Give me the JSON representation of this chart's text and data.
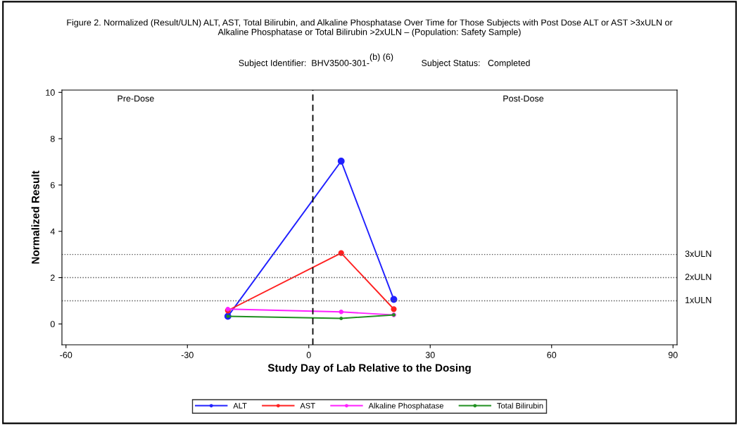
{
  "chart_data": {
    "type": "line",
    "title": "Figure 2. Normalized (Result/ULN) ALT, AST, Total Bilirubin, and Alkaline Phosphatase Over Time for Those Subjects with Post Dose ALT or AST >3xULN or\nAlkaline Phosphatase or Total Bilirubin >2xULN – (Population: Safety Sample)",
    "subtitle": "Subject Identifier:  BHV3500-301-",
    "annotations": [
      "(b) (6)",
      "Subject Status:   Completed",
      "Pre-Dose",
      "Post-Dose"
    ],
    "xlabel": "Study Day of Lab Relative to the Dosing",
    "ylabel": "Normalized Result",
    "x": [
      -20,
      8,
      21
    ],
    "series": [
      {
        "name": "ALT",
        "color": "#2020ff",
        "values": [
          0.33,
          7.03,
          1.06
        ]
      },
      {
        "name": "AST",
        "color": "#ff2020",
        "values": [
          0.58,
          3.06,
          0.64
        ]
      },
      {
        "name": "Alkaline Phosphatase",
        "color": "#ff20ff",
        "values": [
          0.64,
          0.52,
          0.39
        ]
      },
      {
        "name": "Total Bilirubin",
        "color": "#209020",
        "values": [
          0.33,
          0.24,
          0.39
        ]
      }
    ],
    "xlim": [
      -61,
      91
    ],
    "ylim": [
      -0.9,
      10.1
    ],
    "xticks": [
      -60,
      -30,
      0,
      30,
      60,
      90
    ],
    "yticks": [
      0,
      2,
      4,
      6,
      8,
      10
    ],
    "ref_lines": [
      {
        "axis": "x",
        "value": 1,
        "color": "#000000",
        "line_style": "dashed"
      },
      {
        "axis": "y",
        "value": 3,
        "label": "3xULN",
        "color": "#555555",
        "line_style": "dotted"
      },
      {
        "axis": "y",
        "value": 2,
        "label": "2xULN",
        "color": "#555555",
        "line_style": "dotted"
      },
      {
        "axis": "y",
        "value": 1,
        "label": "1xULN",
        "color": "#555555",
        "line_style": "dotted"
      }
    ],
    "legend": "bottom",
    "marker": "circle",
    "line_style": "solid",
    "grid": false
  }
}
